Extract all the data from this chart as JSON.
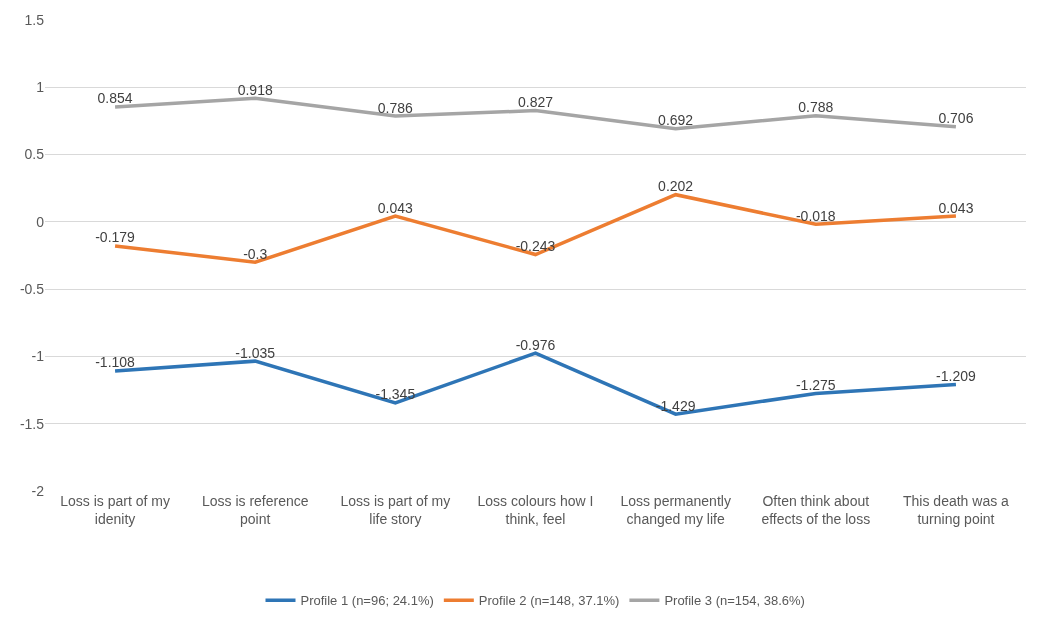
{
  "chart_data": {
    "type": "line",
    "categories": [
      "Loss is part of my idenity",
      "Loss is reference point",
      "Loss is part of my life story",
      "Loss colours how I think, feel",
      "Loss permanently changed my life",
      "Often think about effects of the loss",
      "This death was a turning point"
    ],
    "series": [
      {
        "name": "Profile 1 (n=96; 24.1%)",
        "color": "#2e75b6",
        "values": [
          -1.108,
          -1.035,
          -1.345,
          -0.976,
          -1.429,
          -1.275,
          -1.209
        ]
      },
      {
        "name": "Profile 2 (n=148, 37.1%)",
        "color": "#ed7d31",
        "values": [
          -0.179,
          -0.3,
          0.043,
          -0.243,
          0.202,
          -0.018,
          0.043
        ]
      },
      {
        "name": "Profile 3 (n=154, 38.6%)",
        "color": "#a5a5a5",
        "values": [
          0.854,
          0.918,
          0.786,
          0.827,
          0.692,
          0.788,
          0.706
        ]
      }
    ],
    "ylim": [
      -2,
      1.5
    ],
    "yticks": [
      -2,
      -1.5,
      -1,
      -0.5,
      0,
      0.5,
      1,
      1.5
    ],
    "grid": "y",
    "legend": "bottom",
    "marker": "none",
    "line_style": "solid",
    "data_labels": true
  }
}
